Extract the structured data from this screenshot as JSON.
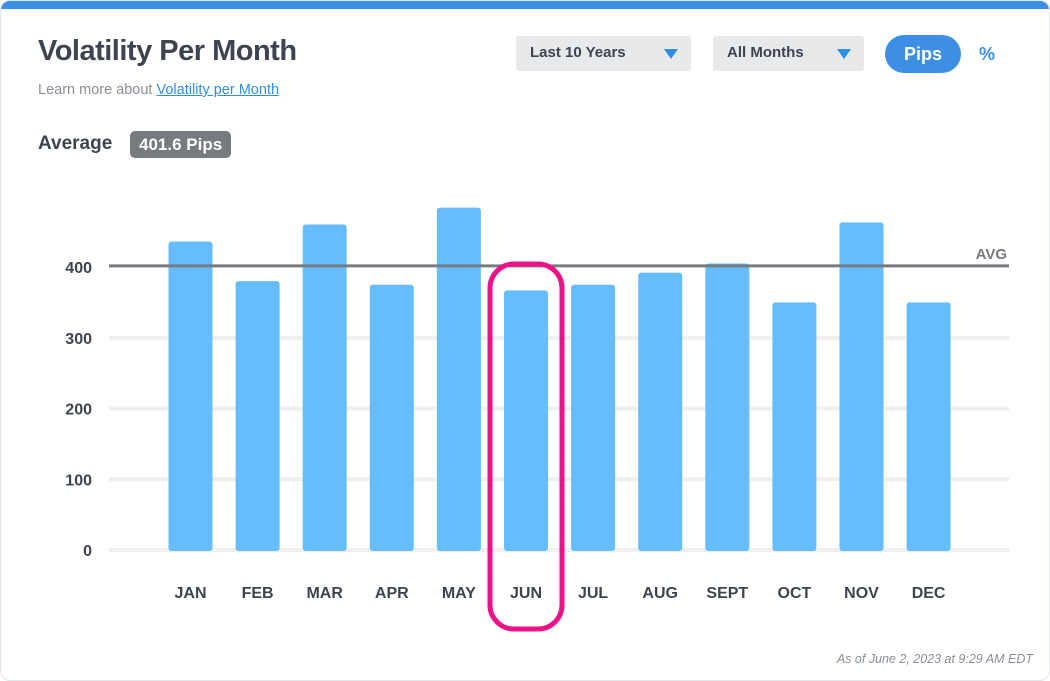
{
  "header": {
    "title": "Volatility Per Month",
    "learn_prefix": "Learn more about ",
    "learn_link": "Volatility per Month"
  },
  "controls": {
    "period": "Last 10 Years",
    "months": "All Months",
    "unit_pips": "Pips",
    "unit_percent": "%"
  },
  "average": {
    "label": "Average",
    "value": "401.6 Pips"
  },
  "chart_data": {
    "type": "bar",
    "categories": [
      "JAN",
      "FEB",
      "MAR",
      "APR",
      "MAY",
      "JUN",
      "JUL",
      "AUG",
      "SEPT",
      "OCT",
      "NOV",
      "DEC"
    ],
    "values": [
      436,
      380,
      460,
      375,
      484,
      367,
      375,
      392,
      405,
      350,
      463,
      350
    ],
    "average": 401.6,
    "average_label": "AVG",
    "yticks": [
      0,
      100,
      200,
      300,
      400
    ],
    "ylim": [
      0,
      490
    ],
    "highlighted_category": "JUN",
    "grid": true,
    "colors": {
      "bar": "#66bdfd",
      "avg_line": "#777a7f",
      "highlight": "#ee1289",
      "grid": "#efefef"
    }
  },
  "footer": {
    "as_of": "As of June 2, 2023 at 9:29 AM EDT"
  }
}
